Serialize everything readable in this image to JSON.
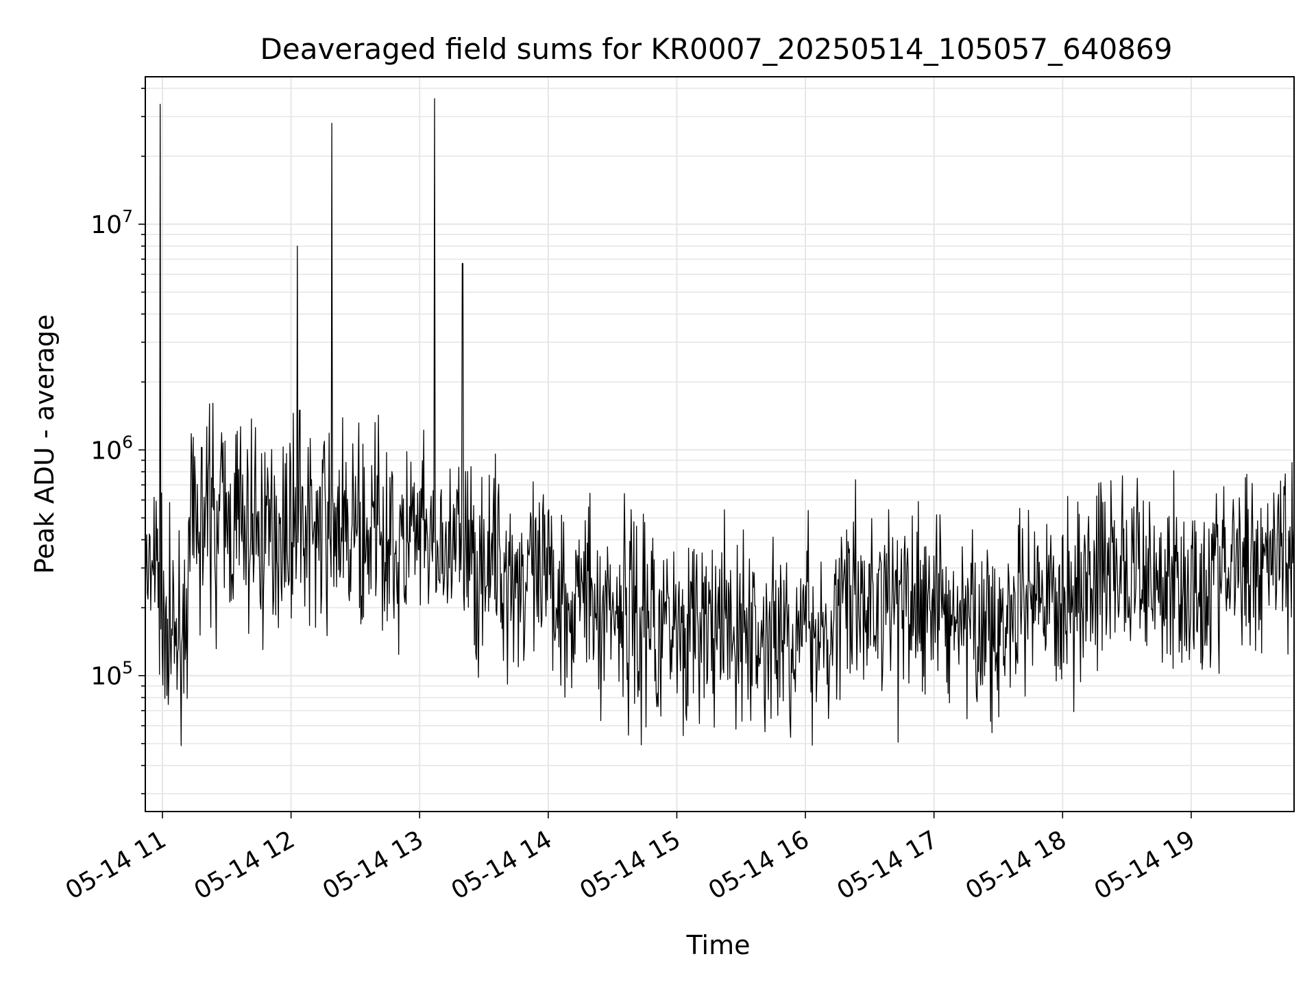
{
  "chart_data": {
    "type": "line",
    "title": "Deaveraged field sums for KR0007_20250514_105057_640869",
    "xlabel": "Time",
    "ylabel": "Peak ADU - average",
    "yscale": "log",
    "ylim": [
      25000,
      45000000
    ],
    "xlim": [
      "2025-05-14 10:52",
      "2025-05-14 19:48"
    ],
    "grid": true,
    "x_tick_labels": [
      "05-14 11",
      "05-14 12",
      "05-14 13",
      "05-14 14",
      "05-14 15",
      "05-14 16",
      "05-14 17",
      "05-14 18",
      "05-14 19"
    ],
    "y_ticks": [
      {
        "base": "10",
        "exp": "5",
        "value": 100000
      },
      {
        "base": "10",
        "exp": "6",
        "value": 1000000
      },
      {
        "base": "10",
        "exp": "7",
        "value": 10000000
      }
    ],
    "series": [
      {
        "color": "#000000",
        "x": [
          "2025-05-14 10:52",
          "2025-05-14 10:54",
          "2025-05-14 10:56",
          "2025-05-14 10:58",
          "2025-05-14 11:00",
          "2025-05-14 11:05",
          "2025-05-14 11:10",
          "2025-05-14 11:15",
          "2025-05-14 11:20",
          "2025-05-14 11:30",
          "2025-05-14 11:40",
          "2025-05-14 11:50",
          "2025-05-14 12:00",
          "2025-05-14 12:10",
          "2025-05-14 12:20",
          "2025-05-14 12:30",
          "2025-05-14 12:40",
          "2025-05-14 12:50",
          "2025-05-14 13:00",
          "2025-05-14 13:10",
          "2025-05-14 13:20",
          "2025-05-14 13:30",
          "2025-05-14 13:40",
          "2025-05-14 13:50",
          "2025-05-14 14:00",
          "2025-05-14 14:15",
          "2025-05-14 14:30",
          "2025-05-14 14:45",
          "2025-05-14 15:00",
          "2025-05-14 15:15",
          "2025-05-14 15:30",
          "2025-05-14 15:45",
          "2025-05-14 16:00",
          "2025-05-14 16:15",
          "2025-05-14 16:30",
          "2025-05-14 16:45",
          "2025-05-14 17:00",
          "2025-05-14 17:15",
          "2025-05-14 17:30",
          "2025-05-14 17:45",
          "2025-05-14 18:00",
          "2025-05-14 18:15",
          "2025-05-14 18:30",
          "2025-05-14 18:45",
          "2025-05-14 19:00",
          "2025-05-14 19:15",
          "2025-05-14 19:30",
          "2025-05-14 19:48"
        ],
        "y": [
          300000,
          200000,
          350000,
          250000,
          200000,
          150000,
          180000,
          500000,
          520000,
          480000,
          460000,
          450000,
          480000,
          460000,
          470000,
          440000,
          420000,
          400000,
          380000,
          360000,
          350000,
          330000,
          300000,
          270000,
          250000,
          230000,
          210000,
          190000,
          170000,
          160000,
          150000,
          150000,
          160000,
          190000,
          220000,
          220000,
          210000,
          180000,
          160000,
          180000,
          220000,
          290000,
          300000,
          280000,
          270000,
          300000,
          330000,
          450000
        ]
      }
    ],
    "spikes": [
      {
        "x": "2025-05-14 10:59",
        "y": 34000000
      },
      {
        "x": "2025-05-14 12:03",
        "y": 8000000
      },
      {
        "x": "2025-05-14 12:19",
        "y": 28000000
      },
      {
        "x": "2025-05-14 13:07",
        "y": 36000000
      },
      {
        "x": "2025-05-14 13:20",
        "y": 6700000
      },
      {
        "x": "2025-05-14 11:22",
        "y": 1600000
      },
      {
        "x": "2025-05-14 12:04",
        "y": 1500000
      }
    ]
  }
}
